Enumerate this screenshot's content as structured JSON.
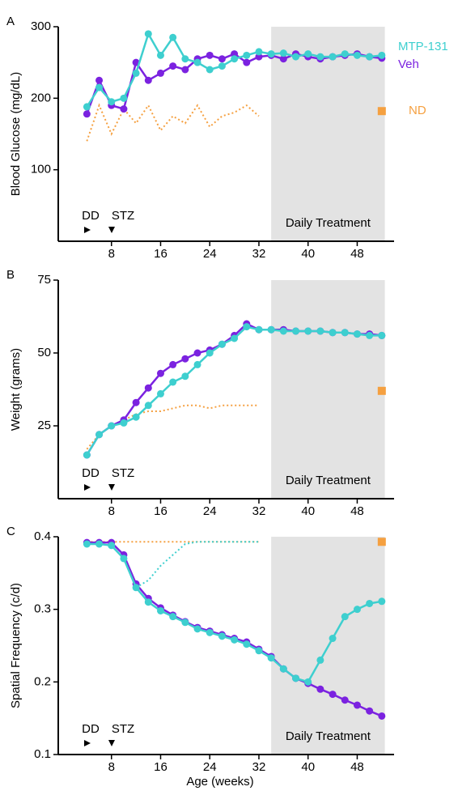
{
  "chart_data": [
    {
      "type": "line",
      "panel": "A",
      "ylabel": "Blood Glucose (mg/dL)",
      "xlim": [
        0,
        54
      ],
      "xticks": [
        8,
        16,
        24,
        32,
        40,
        48
      ],
      "ylim": [
        0,
        300
      ],
      "yticks": [
        100,
        200,
        300
      ],
      "x": [
        4,
        6,
        8,
        10,
        12,
        14,
        16,
        18,
        20,
        22,
        24,
        26,
        28,
        30,
        32,
        34,
        36,
        38,
        40,
        42,
        44,
        46,
        48,
        50,
        52
      ],
      "series": [
        {
          "name": "MTP-131",
          "color": "#3ecfcf",
          "values": [
            188,
            215,
            195,
            200,
            235,
            290,
            260,
            285,
            255,
            250,
            240,
            245,
            255,
            260,
            265,
            262,
            263,
            258,
            262,
            258,
            258,
            262,
            260,
            258,
            260
          ]
        },
        {
          "name": "Veh",
          "color": "#7b22e0",
          "values": [
            178,
            225,
            190,
            185,
            250,
            225,
            235,
            245,
            240,
            255,
            260,
            255,
            262,
            250,
            258,
            260,
            255,
            262,
            258,
            255,
            258,
            260,
            262,
            258,
            256
          ]
        }
      ],
      "nd": {
        "name": "ND",
        "color": "#f5a040",
        "x": [
          4,
          6,
          8,
          10,
          12,
          14,
          16,
          18,
          20,
          22,
          24,
          26,
          28,
          30,
          32
        ],
        "values": [
          140,
          190,
          150,
          185,
          165,
          190,
          155,
          175,
          165,
          190,
          160,
          175,
          180,
          190,
          175
        ],
        "end_x": 52,
        "end_value": 182
      },
      "annotations": {
        "dd": "DD",
        "stz": "STZ",
        "treatment": "Daily Treatment"
      },
      "treatment_span": [
        34,
        52.5
      ]
    },
    {
      "type": "line",
      "panel": "B",
      "ylabel": "Weight (grams)",
      "xlim": [
        0,
        54
      ],
      "xticks": [
        8,
        16,
        24,
        32,
        40,
        48
      ],
      "ylim": [
        0,
        75
      ],
      "yticks": [
        25,
        50,
        75
      ],
      "x": [
        4,
        6,
        8,
        10,
        12,
        14,
        16,
        18,
        20,
        22,
        24,
        26,
        28,
        30,
        32,
        34,
        36,
        38,
        40,
        42,
        44,
        46,
        48,
        50,
        52
      ],
      "series": [
        {
          "name": "MTP-131",
          "color": "#3ecfcf",
          "values": [
            15,
            22,
            25,
            26,
            28,
            32,
            36,
            40,
            42,
            46,
            50,
            53,
            55,
            59,
            58,
            58,
            57.5,
            57.5,
            57.5,
            57.5,
            57,
            57,
            56.5,
            56,
            56
          ]
        },
        {
          "name": "Veh",
          "color": "#7b22e0",
          "values": [
            15,
            22,
            25,
            27,
            33,
            38,
            43,
            46,
            48,
            50,
            51,
            53,
            56,
            60,
            58,
            58,
            58,
            57.5,
            57.5,
            57.5,
            57,
            57,
            56.5,
            56.5,
            56
          ]
        }
      ],
      "nd": {
        "name": "ND",
        "color": "#f5a040",
        "x": [
          4,
          6,
          8,
          10,
          12,
          14,
          16,
          18,
          20,
          22,
          24,
          26,
          28,
          30,
          32
        ],
        "values": [
          17,
          22,
          25,
          27,
          29,
          30,
          30,
          31,
          32,
          32,
          31,
          32,
          32,
          32,
          32
        ],
        "end_x": 52,
        "end_value": 37
      },
      "annotations": {
        "dd": "DD",
        "stz": "STZ",
        "treatment": "Daily Treatment"
      },
      "treatment_span": [
        34,
        52.5
      ]
    },
    {
      "type": "line",
      "panel": "C",
      "ylabel": "Spatial Frequency (c/d)",
      "xlabel": "Age (weeks)",
      "xlim": [
        0,
        54
      ],
      "xticks": [
        8,
        16,
        24,
        32,
        40,
        48
      ],
      "ylim": [
        0.1,
        0.4
      ],
      "yticks": [
        0.1,
        0.2,
        0.3,
        0.4
      ],
      "x": [
        4,
        6,
        8,
        10,
        12,
        14,
        16,
        18,
        20,
        22,
        24,
        26,
        28,
        30,
        32,
        34,
        36,
        38,
        40,
        42,
        44,
        46,
        48,
        50,
        52
      ],
      "series": [
        {
          "name": "MTP-131",
          "color": "#3ecfcf",
          "values": [
            0.39,
            0.39,
            0.388,
            0.37,
            0.33,
            0.31,
            0.298,
            0.29,
            0.282,
            0.273,
            0.268,
            0.263,
            0.258,
            0.252,
            0.243,
            0.233,
            0.218,
            0.205,
            0.2,
            0.23,
            0.26,
            0.29,
            0.3,
            0.308,
            0.311
          ]
        },
        {
          "name": "Veh",
          "color": "#7b22e0",
          "values": [
            0.392,
            0.392,
            0.392,
            0.375,
            0.335,
            0.315,
            0.302,
            0.292,
            0.283,
            0.275,
            0.27,
            0.265,
            0.26,
            0.255,
            0.245,
            0.235,
            0.218,
            0.205,
            0.198,
            0.19,
            0.183,
            0.175,
            0.168,
            0.16,
            0.153
          ]
        }
      ],
      "dotted": {
        "color": "#3ecfcf",
        "x": [
          12,
          14,
          16,
          18,
          20,
          22,
          24,
          26,
          28,
          30,
          32
        ],
        "values": [
          0.33,
          0.34,
          0.36,
          0.375,
          0.39,
          0.393,
          0.393,
          0.393,
          0.393,
          0.393,
          0.393
        ]
      },
      "nd": {
        "name": "ND",
        "color": "#f5a040",
        "x": [
          4,
          6,
          8,
          10,
          12,
          14,
          16,
          18,
          20,
          22,
          24,
          26,
          28,
          30,
          32
        ],
        "values": [
          0.393,
          0.393,
          0.393,
          0.393,
          0.393,
          0.393,
          0.393,
          0.393,
          0.393,
          0.393,
          0.393,
          0.393,
          0.393,
          0.393,
          0.393
        ],
        "end_x": 52,
        "end_value": 0.393
      },
      "annotations": {
        "dd": "DD",
        "stz": "STZ",
        "treatment": "Daily Treatment"
      },
      "treatment_span": [
        34,
        52.5
      ]
    }
  ]
}
